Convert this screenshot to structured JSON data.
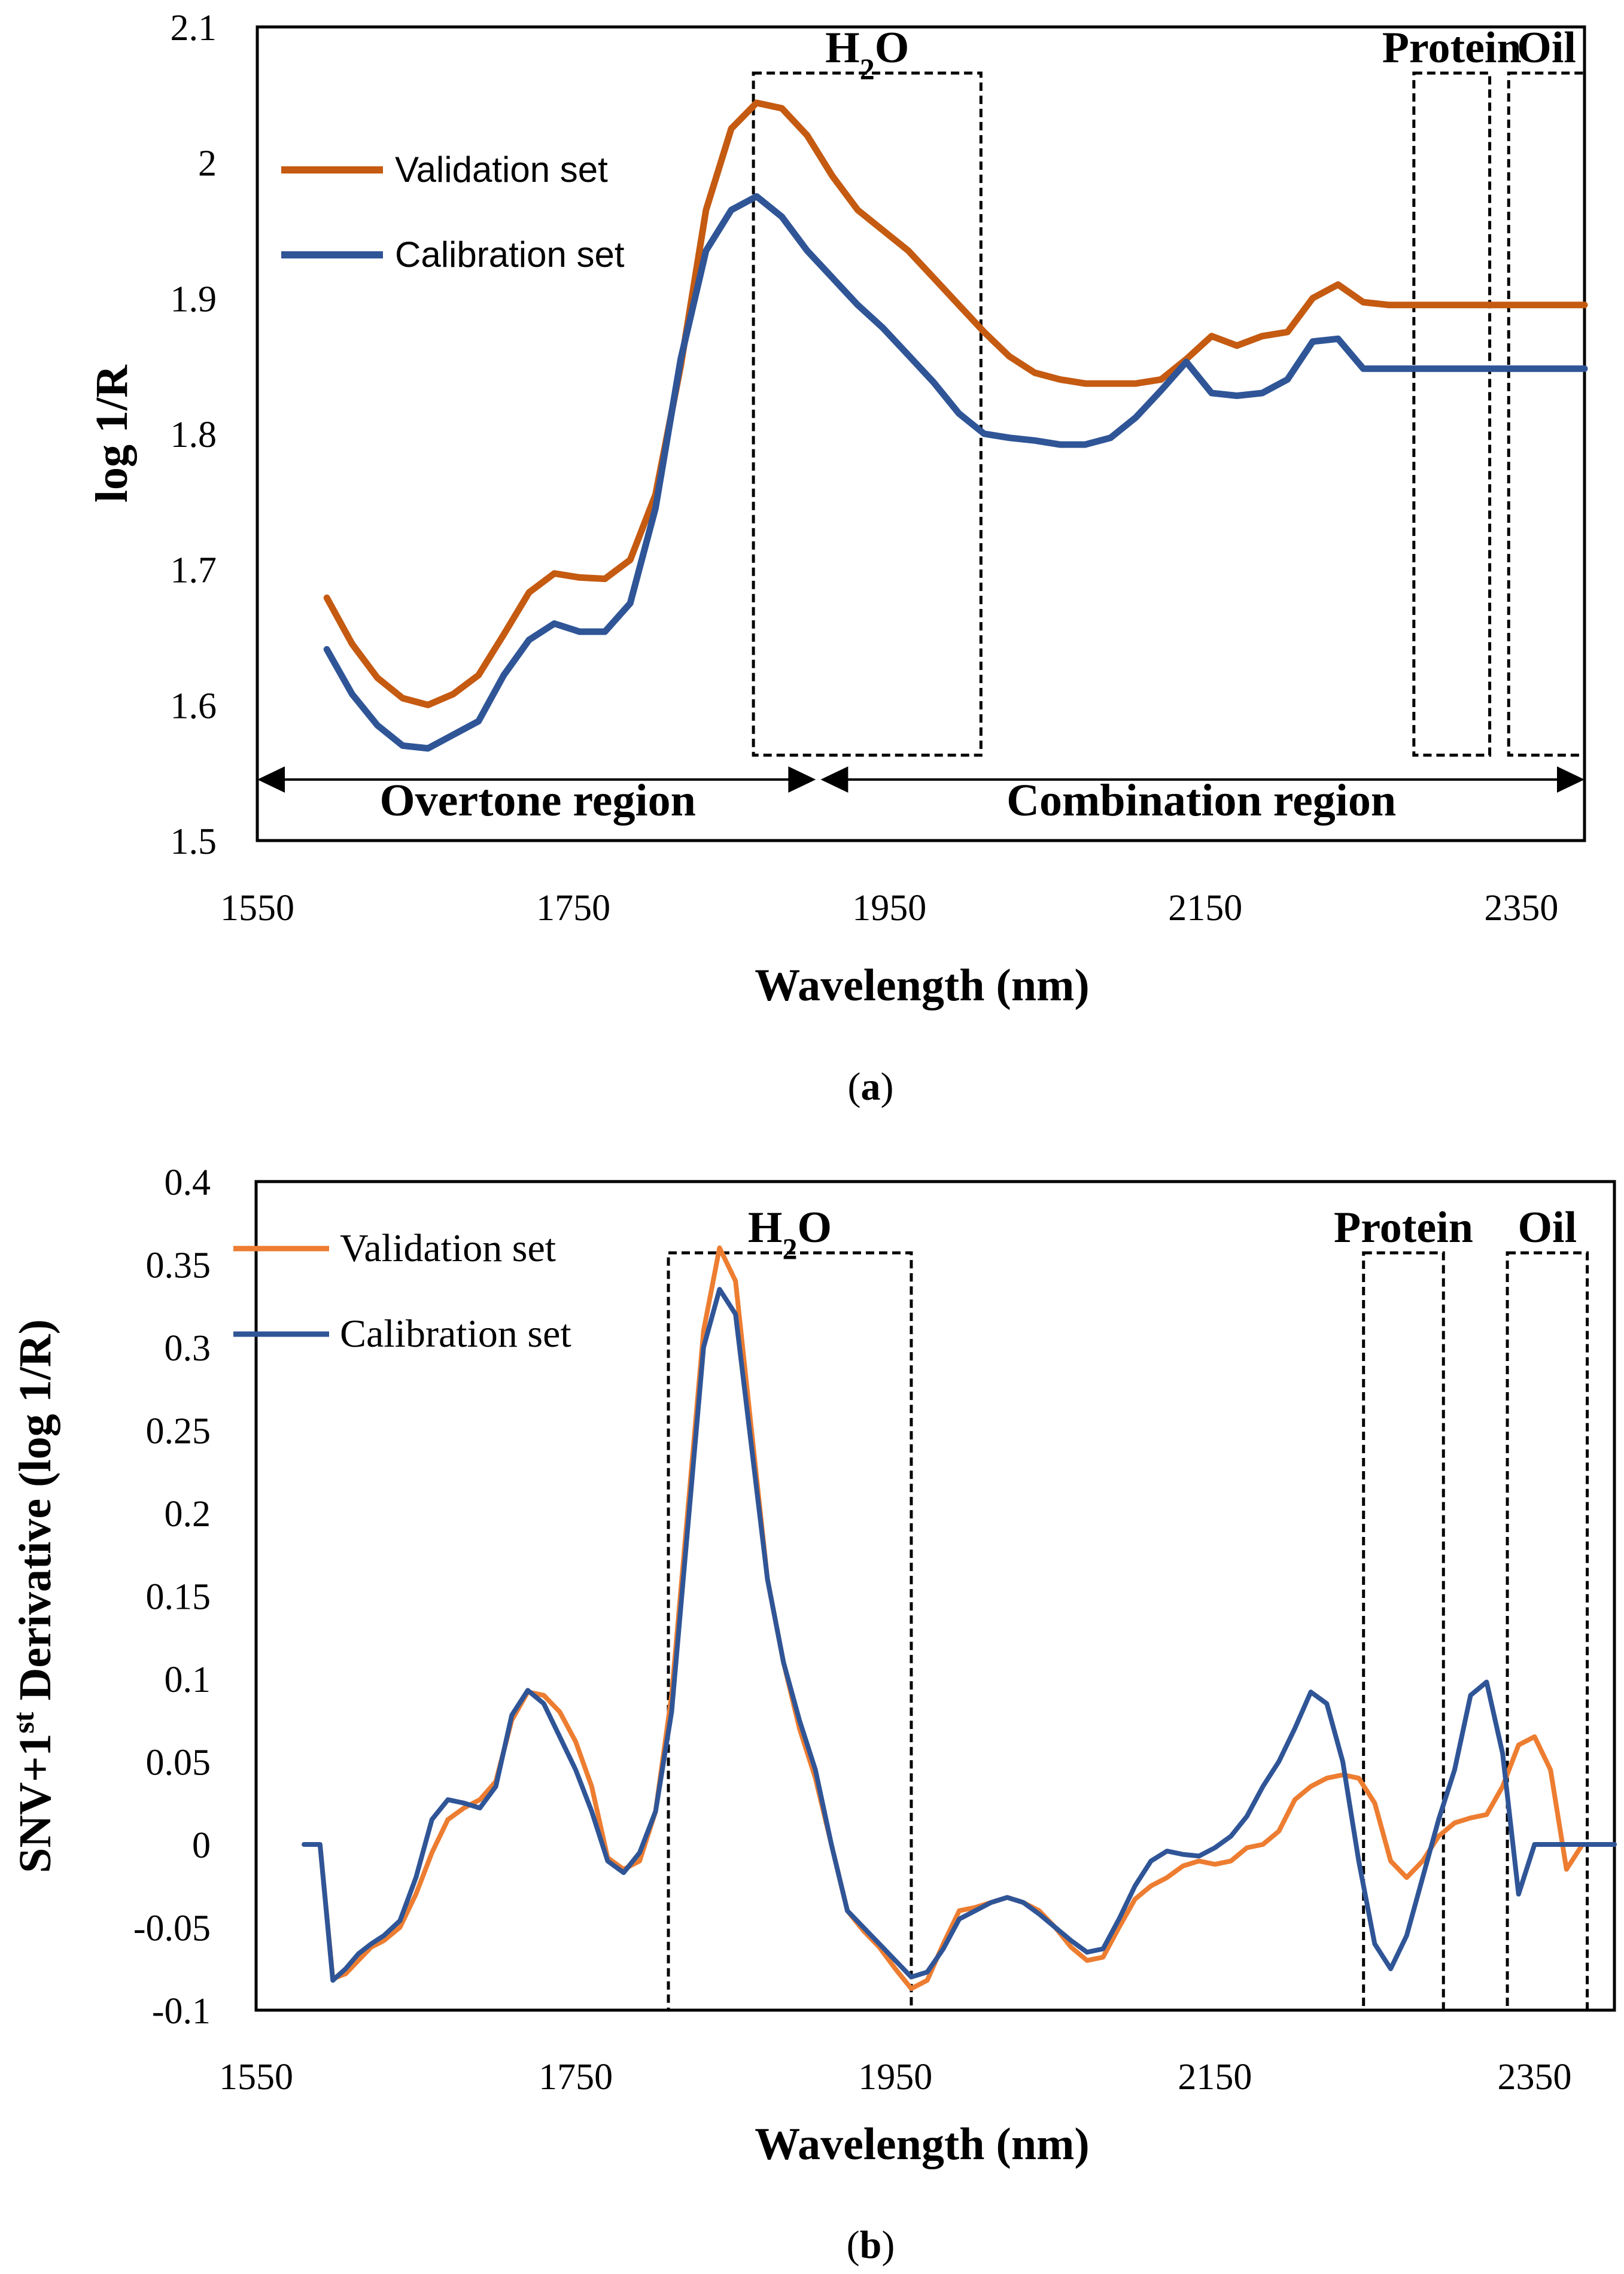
{
  "figure_panels": {
    "a": {
      "caption_open": "(",
      "caption_letter": "a",
      "caption_close": ")"
    },
    "b": {
      "caption_open": "(",
      "caption_letter": "b",
      "caption_close": ")"
    }
  },
  "chart_data": [
    {
      "id": "a",
      "type": "line",
      "xlabel": "Wavelength (nm)",
      "ylabel": "log 1/R",
      "xlim": [
        1550,
        2390
      ],
      "ylim": [
        1.5,
        2.1
      ],
      "xticks": [
        1550,
        1750,
        1950,
        2150,
        2350
      ],
      "yticks": [
        1.5,
        1.6,
        1.7,
        1.8,
        1.9,
        2.0,
        2.1
      ],
      "ytick_labels": [
        "1.5",
        "1.6",
        "1.7",
        "1.8",
        "1.9",
        "2",
        "2.1"
      ],
      "series": [
        {
          "name": "Validation set",
          "color": "#c55a11",
          "x": [
            1594,
            1610,
            1626,
            1642,
            1658,
            1674,
            1690,
            1706,
            1722,
            1738,
            1754,
            1770,
            1786,
            1802,
            1818,
            1834,
            1850,
            1866,
            1882,
            1898,
            1914,
            1930,
            1946,
            1962,
            1978,
            1994,
            2010,
            2026,
            2042,
            2058,
            2074,
            2090,
            2106,
            2122,
            2138,
            2154,
            2170,
            2186,
            2202,
            2218,
            2234,
            2250,
            2266,
            2282,
            2298,
            2314,
            2330,
            2346,
            2362,
            2378,
            2390
          ],
          "values": [
            1.679,
            1.645,
            1.62,
            1.605,
            1.6,
            1.608,
            1.622,
            1.652,
            1.683,
            1.697,
            1.694,
            1.693,
            1.707,
            1.755,
            1.85,
            1.965,
            2.025,
            2.044,
            2.04,
            2.02,
            1.99,
            1.965,
            1.95,
            1.935,
            1.915,
            1.895,
            1.875,
            1.857,
            1.845,
            1.84,
            1.837,
            1.837,
            1.837,
            1.84,
            1.855,
            1.872,
            1.865,
            1.872,
            1.875,
            1.9,
            1.91,
            1.897,
            1.895,
            1.895,
            1.895,
            1.895,
            1.895,
            1.895,
            1.895,
            1.895,
            1.895
          ]
        },
        {
          "name": "Calibration set",
          "color": "#2f5597",
          "x": [
            1594,
            1610,
            1626,
            1642,
            1658,
            1674,
            1690,
            1706,
            1722,
            1738,
            1754,
            1770,
            1786,
            1802,
            1818,
            1834,
            1850,
            1866,
            1882,
            1898,
            1914,
            1930,
            1946,
            1962,
            1978,
            1994,
            2010,
            2026,
            2042,
            2058,
            2074,
            2090,
            2106,
            2122,
            2138,
            2154,
            2170,
            2186,
            2202,
            2218,
            2234,
            2250,
            2266,
            2282,
            2298,
            2314,
            2330,
            2346,
            2362,
            2378,
            2390
          ],
          "values": [
            1.641,
            1.608,
            1.585,
            1.57,
            1.568,
            1.578,
            1.588,
            1.622,
            1.648,
            1.66,
            1.654,
            1.654,
            1.675,
            1.745,
            1.855,
            1.935,
            1.965,
            1.975,
            1.96,
            1.935,
            1.915,
            1.895,
            1.878,
            1.858,
            1.838,
            1.815,
            1.8,
            1.797,
            1.795,
            1.792,
            1.792,
            1.797,
            1.812,
            1.832,
            1.853,
            1.83,
            1.828,
            1.83,
            1.84,
            1.868,
            1.87,
            1.848,
            1.848,
            1.848,
            1.848,
            1.848,
            1.848,
            1.848,
            1.848,
            1.848,
            1.848
          ]
        }
      ],
      "boxes": [
        {
          "label": "H₂O",
          "label_main": "H",
          "label_sub": "2",
          "label_end": "O",
          "x0": 1864,
          "x1": 2008,
          "y0": 1.563,
          "y1": 2.066
        },
        {
          "label": "Protein",
          "x0": 2282,
          "x1": 2330,
          "y0": 1.563,
          "y1": 2.066
        },
        {
          "label": "Oil",
          "x0": 2342,
          "x1": 2390,
          "y0": 1.563,
          "y1": 2.066
        }
      ],
      "regions": [
        {
          "label": "Overtone region",
          "x0": 1550,
          "x1": 1905
        },
        {
          "label": "Combination region",
          "x0": 1905,
          "x1": 2390
        }
      ],
      "legend_position": "upper-left"
    },
    {
      "id": "b",
      "type": "line",
      "xlabel": "Wavelength (nm)",
      "ylabel_main": "SNV+1",
      "ylabel_sup": "st",
      "ylabel_end": " Derivative (log 1/R)",
      "xlim": [
        1550,
        2400
      ],
      "ylim": [
        -0.1,
        0.4
      ],
      "xticks": [
        1550,
        1750,
        1950,
        2150,
        2350
      ],
      "yticks": [
        -0.1,
        -0.05,
        0,
        0.05,
        0.1,
        0.15,
        0.2,
        0.25,
        0.3,
        0.35,
        0.4
      ],
      "ytick_labels": [
        "-0.1",
        "-0.05",
        "0",
        "0.05",
        "0.1",
        "0.15",
        "0.2",
        "0.25",
        "0.3",
        "0.35",
        "0.4"
      ],
      "series": [
        {
          "name": "Validation set",
          "color": "#ed7d31",
          "x": [
            1580,
            1590,
            1598,
            1606,
            1614,
            1622,
            1630,
            1640,
            1650,
            1660,
            1670,
            1680,
            1690,
            1700,
            1710,
            1720,
            1730,
            1740,
            1750,
            1760,
            1770,
            1780,
            1790,
            1800,
            1810,
            1820,
            1830,
            1840,
            1850,
            1860,
            1870,
            1880,
            1890,
            1900,
            1910,
            1920,
            1930,
            1940,
            1950,
            1960,
            1970,
            1980,
            1990,
            2000,
            2010,
            2020,
            2030,
            2040,
            2050,
            2060,
            2070,
            2080,
            2090,
            2100,
            2110,
            2120,
            2130,
            2140,
            2150,
            2160,
            2170,
            2180,
            2190,
            2200,
            2210,
            2220,
            2230,
            2240,
            2250,
            2260,
            2270,
            2280,
            2290,
            2300,
            2310,
            2320,
            2330,
            2340,
            2350,
            2360,
            2370,
            2380,
            2390,
            2400
          ],
          "values": [
            0,
            0,
            -0.081,
            -0.078,
            -0.07,
            -0.062,
            -0.058,
            -0.05,
            -0.03,
            -0.005,
            0.015,
            0.022,
            0.027,
            0.038,
            0.075,
            0.092,
            0.09,
            0.08,
            0.062,
            0.035,
            -0.008,
            -0.015,
            -0.01,
            0.02,
            0.09,
            0.2,
            0.31,
            0.36,
            0.34,
            0.25,
            0.16,
            0.11,
            0.07,
            0.04,
            0.0,
            -0.04,
            -0.052,
            -0.062,
            -0.075,
            -0.087,
            -0.082,
            -0.06,
            -0.04,
            -0.038,
            -0.035,
            -0.032,
            -0.035,
            -0.04,
            -0.05,
            -0.062,
            -0.07,
            -0.068,
            -0.05,
            -0.033,
            -0.025,
            -0.02,
            -0.013,
            -0.01,
            -0.012,
            -0.01,
            -0.002,
            0.0,
            0.008,
            0.027,
            0.035,
            0.04,
            0.042,
            0.04,
            0.025,
            -0.01,
            -0.02,
            -0.01,
            0.005,
            0.013,
            0.016,
            0.018,
            0.035,
            0.06,
            0.065,
            0.045,
            -0.015,
            0.0,
            0.0,
            0.0
          ]
        },
        {
          "name": "Calibration set",
          "color": "#2f5597",
          "x": [
            1580,
            1590,
            1598,
            1606,
            1614,
            1622,
            1630,
            1640,
            1650,
            1660,
            1670,
            1680,
            1690,
            1700,
            1710,
            1720,
            1730,
            1740,
            1750,
            1760,
            1770,
            1780,
            1790,
            1800,
            1810,
            1820,
            1830,
            1840,
            1850,
            1860,
            1870,
            1880,
            1890,
            1900,
            1910,
            1920,
            1930,
            1940,
            1950,
            1960,
            1970,
            1980,
            1990,
            2000,
            2010,
            2020,
            2030,
            2040,
            2050,
            2060,
            2070,
            2080,
            2090,
            2100,
            2110,
            2120,
            2130,
            2140,
            2150,
            2160,
            2170,
            2180,
            2190,
            2200,
            2210,
            2220,
            2230,
            2240,
            2250,
            2260,
            2270,
            2280,
            2290,
            2300,
            2310,
            2320,
            2330,
            2340,
            2350,
            2360,
            2370,
            2380,
            2390,
            2400
          ],
          "values": [
            0,
            0,
            -0.082,
            -0.075,
            -0.066,
            -0.06,
            -0.055,
            -0.046,
            -0.02,
            0.015,
            0.027,
            0.025,
            0.022,
            0.035,
            0.078,
            0.093,
            0.085,
            0.065,
            0.045,
            0.02,
            -0.01,
            -0.017,
            -0.005,
            0.02,
            0.08,
            0.19,
            0.3,
            0.335,
            0.32,
            0.24,
            0.16,
            0.11,
            0.075,
            0.045,
            0.0,
            -0.04,
            -0.05,
            -0.06,
            -0.07,
            -0.08,
            -0.077,
            -0.063,
            -0.045,
            -0.04,
            -0.035,
            -0.032,
            -0.035,
            -0.042,
            -0.05,
            -0.058,
            -0.065,
            -0.063,
            -0.045,
            -0.025,
            -0.01,
            -0.004,
            -0.006,
            -0.007,
            -0.002,
            0.005,
            0.017,
            0.035,
            0.05,
            0.07,
            0.092,
            0.085,
            0.05,
            -0.01,
            -0.06,
            -0.075,
            -0.055,
            -0.02,
            0.015,
            0.045,
            0.09,
            0.098,
            0.055,
            -0.03,
            0.0,
            0.0,
            0.0,
            0.0,
            0.0,
            0.0
          ]
        }
      ],
      "boxes": [
        {
          "label": "H₂O",
          "label_main": "H",
          "label_sub": "2",
          "label_end": "O",
          "x0": 1808,
          "x1": 1960,
          "y0": -0.1,
          "y1": 0.357
        },
        {
          "label": "Protein",
          "x0": 2243,
          "x1": 2293,
          "y0": -0.1,
          "y1": 0.357
        },
        {
          "label": "Oil",
          "x0": 2333,
          "x1": 2383,
          "y0": -0.1,
          "y1": 0.357
        }
      ],
      "legend_position": "upper-left"
    }
  ]
}
